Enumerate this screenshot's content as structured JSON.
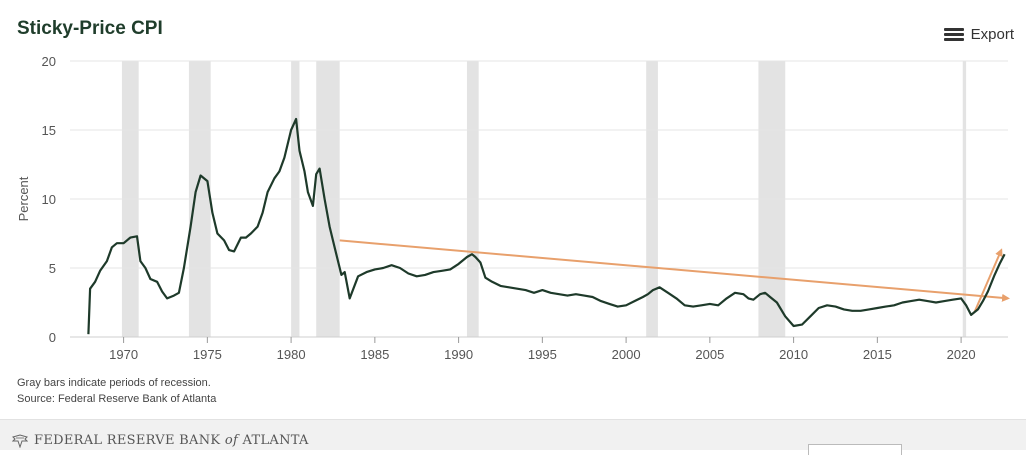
{
  "header": {
    "title": "Sticky-Price CPI",
    "export_label": "Export",
    "export_icon": "menu-icon"
  },
  "notes": {
    "line1": "Gray bars indicate periods of recession.",
    "line2": "Source: Federal Reserve Bank of Atlanta"
  },
  "footer": {
    "logo_prefix": "FEDERAL RESERVE BANK ",
    "logo_of": "of",
    "logo_suffix": " ATLANTA",
    "seal_icon": "eagle-seal-icon"
  },
  "colors": {
    "line": "#1e3a2a",
    "trend": "#e8a06c",
    "recession": "#e3e3e3",
    "grid": "#e6e6e6",
    "title": "#1f3d2b"
  },
  "chart_data": {
    "type": "line",
    "title": "Sticky-Price CPI",
    "ylabel": "Percent",
    "xlabel": "",
    "xlim": [
      1966.8,
      2022.8
    ],
    "ylim": [
      0,
      20
    ],
    "y_ticks": [
      0,
      5,
      10,
      15,
      20
    ],
    "x_ticks": [
      1970,
      1975,
      1980,
      1985,
      1990,
      1995,
      2000,
      2005,
      2010,
      2015,
      2020
    ],
    "grid": true,
    "recessions": [
      [
        1969.9,
        1970.9
      ],
      [
        1973.9,
        1975.2
      ],
      [
        1980.0,
        1980.5
      ],
      [
        1981.5,
        1982.9
      ],
      [
        1990.5,
        1991.2
      ],
      [
        2001.2,
        2001.9
      ],
      [
        2007.9,
        2009.5
      ],
      [
        2020.1,
        2020.3
      ]
    ],
    "series": [
      {
        "x": [
          1967.9,
          1968.0,
          1968.3,
          1968.6,
          1969.0,
          1969.3,
          1969.6,
          1970.0,
          1970.4,
          1970.8,
          1971.0,
          1971.3,
          1971.6,
          1972.0,
          1972.3,
          1972.6,
          1973.0,
          1973.3,
          1973.6,
          1974.0,
          1974.3,
          1974.6,
          1975.0,
          1975.3,
          1975.6,
          1976.0,
          1976.3,
          1976.6,
          1977.0,
          1977.3,
          1977.6,
          1978.0,
          1978.3,
          1978.6,
          1979.0,
          1979.3,
          1979.6,
          1980.0,
          1980.3,
          1980.5,
          1980.8,
          1981.0,
          1981.3,
          1981.5,
          1981.7,
          1982.0,
          1982.3,
          1982.6,
          1982.9,
          1983.0,
          1983.2,
          1983.5,
          1984.0,
          1984.5,
          1985.0,
          1985.5,
          1986.0,
          1986.5,
          1987.0,
          1987.5,
          1988.0,
          1988.5,
          1989.0,
          1989.5,
          1990.0,
          1990.5,
          1990.8,
          1991.0,
          1991.3,
          1991.6,
          1992.0,
          1992.5,
          1993.0,
          1993.5,
          1994.0,
          1994.5,
          1995.0,
          1995.5,
          1996.0,
          1996.5,
          1997.0,
          1997.5,
          1998.0,
          1998.5,
          1999.0,
          1999.5,
          2000.0,
          2000.5,
          2001.0,
          2001.3,
          2001.6,
          2002.0,
          2002.5,
          2003.0,
          2003.5,
          2004.0,
          2004.5,
          2005.0,
          2005.5,
          2006.0,
          2006.5,
          2007.0,
          2007.3,
          2007.6,
          2008.0,
          2008.3,
          2008.6,
          2009.0,
          2009.5,
          2010.0,
          2010.5,
          2011.0,
          2011.5,
          2012.0,
          2012.5,
          2013.0,
          2013.5,
          2014.0,
          2014.5,
          2015.0,
          2015.5,
          2016.0,
          2016.5,
          2017.0,
          2017.5,
          2018.0,
          2018.5,
          2019.0,
          2019.5,
          2020.0,
          2020.3,
          2020.6,
          2021.0,
          2021.3,
          2021.6,
          2022.0,
          2022.3,
          2022.6
        ],
        "y": [
          0.2,
          3.5,
          4.0,
          4.8,
          5.5,
          6.5,
          6.8,
          6.8,
          7.2,
          7.3,
          5.5,
          5.0,
          4.2,
          4.0,
          3.3,
          2.8,
          3.0,
          3.2,
          5.0,
          8.0,
          10.5,
          11.7,
          11.3,
          9.0,
          7.5,
          7.0,
          6.3,
          6.2,
          7.2,
          7.2,
          7.5,
          8.0,
          9.0,
          10.5,
          11.5,
          12.0,
          13.0,
          15.0,
          15.8,
          13.5,
          12.0,
          10.5,
          9.5,
          11.8,
          12.2,
          10.0,
          8.0,
          6.5,
          5.0,
          4.5,
          4.7,
          2.8,
          4.4,
          4.7,
          4.9,
          5.0,
          5.2,
          5.0,
          4.6,
          4.4,
          4.5,
          4.7,
          4.8,
          4.9,
          5.3,
          5.8,
          6.0,
          5.8,
          5.4,
          4.3,
          4.0,
          3.7,
          3.6,
          3.5,
          3.4,
          3.2,
          3.4,
          3.2,
          3.1,
          3.0,
          3.1,
          3.0,
          2.9,
          2.6,
          2.4,
          2.2,
          2.3,
          2.6,
          2.9,
          3.1,
          3.4,
          3.6,
          3.2,
          2.8,
          2.3,
          2.2,
          2.3,
          2.4,
          2.3,
          2.8,
          3.2,
          3.1,
          2.8,
          2.7,
          3.1,
          3.2,
          2.9,
          2.5,
          1.5,
          0.8,
          0.9,
          1.5,
          2.1,
          2.3,
          2.2,
          2.0,
          1.9,
          1.9,
          2.0,
          2.1,
          2.2,
          2.3,
          2.5,
          2.6,
          2.7,
          2.6,
          2.5,
          2.6,
          2.7,
          2.8,
          2.3,
          1.6,
          2.0,
          2.6,
          3.3,
          4.5,
          5.3,
          6.0
        ]
      }
    ],
    "trendlines": [
      {
        "from": [
          1982.9,
          7.0
        ],
        "to": [
          2022.8,
          2.8
        ]
      },
      {
        "from": [
          2020.8,
          1.8
        ],
        "to": [
          2022.4,
          6.3
        ]
      }
    ]
  }
}
